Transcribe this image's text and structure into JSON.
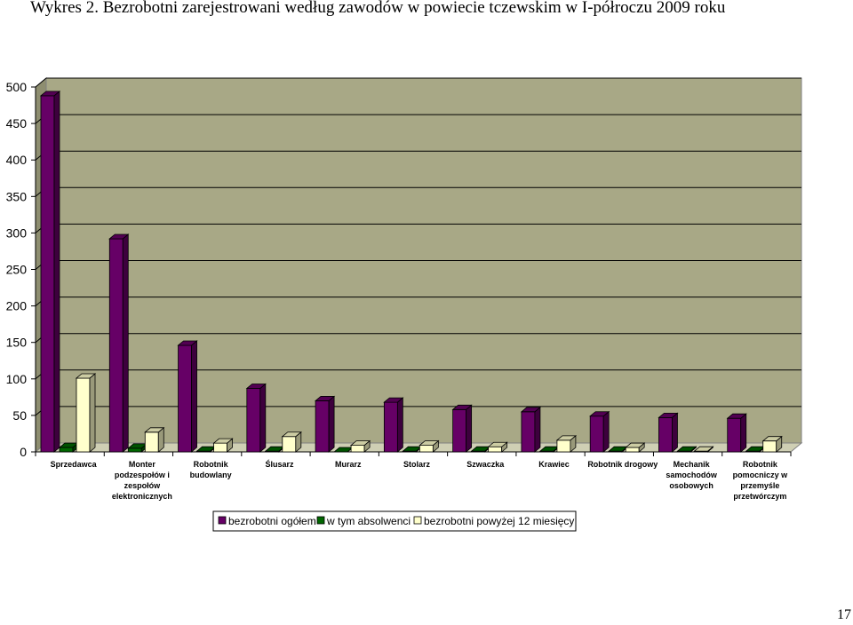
{
  "page": {
    "title": "Wykres 2. Bezrobotni zarejestrowani według zawodów w powiecie tczewskim w I-półroczu 2009 roku",
    "page_number": "17"
  },
  "chart_data": {
    "type": "bar",
    "title": "Wykres 2. Bezrobotni zarejestrowani według zawodów w powiecie tczewskim w I-półroczu 2009 roku",
    "xlabel": "",
    "ylabel": "",
    "ylim": [
      0,
      500
    ],
    "yticks": [
      "0",
      "50",
      "100",
      "150",
      "200",
      "250",
      "300",
      "350",
      "400",
      "450",
      "500"
    ],
    "grid": true,
    "legend_position": "bottom",
    "categories": [
      [
        "Sprzedawca"
      ],
      [
        "Monter",
        "podzespołów i",
        "zespołów",
        "elektronicznych"
      ],
      [
        "Robotnik",
        "budowlany"
      ],
      [
        "Ślusarz"
      ],
      [
        "Murarz"
      ],
      [
        "Stolarz"
      ],
      [
        "Szwaczka"
      ],
      [
        "Krawiec"
      ],
      [
        "Robotnik drogowy"
      ],
      [
        "Mechanik",
        "samochodów",
        "osobowych"
      ],
      [
        "Robotnik",
        "pomocniczy w",
        "przemyśle",
        "przetwórczym"
      ]
    ],
    "series": [
      {
        "name": "bezrobotni ogółem",
        "color": "#660066",
        "values": [
          488,
          292,
          146,
          87,
          70,
          68,
          58,
          55,
          49,
          47,
          46
        ]
      },
      {
        "name": "w tym absolwenci",
        "color": "#006600",
        "values": [
          6,
          5,
          1,
          1,
          0,
          1,
          1,
          1,
          1,
          1,
          1
        ]
      },
      {
        "name": "bezrobotni powyżej 12 miesięcy",
        "color": "#ffffcc",
        "values": [
          101,
          27,
          12,
          21,
          9,
          9,
          7,
          16,
          6,
          1,
          15
        ]
      }
    ],
    "colors": {
      "wall": "#a8a886",
      "gridline": "#000000"
    }
  }
}
